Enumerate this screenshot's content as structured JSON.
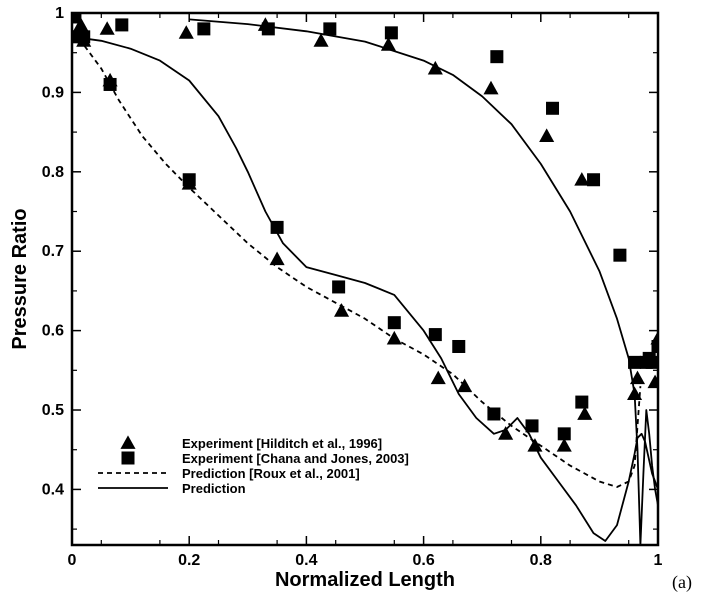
{
  "panel_label": "(a)",
  "chart_data": {
    "type": "scatter",
    "title": "",
    "xlabel": "Normalized Length",
    "ylabel": "Pressure Ratio",
    "xlim": [
      0,
      1
    ],
    "ylim": [
      0.33,
      1.0
    ],
    "xticks": [
      0,
      0.2,
      0.4,
      0.6,
      0.8,
      1
    ],
    "xtick_labels": [
      "0",
      "0.2",
      "0.4",
      "0.6",
      "0.8",
      "1"
    ],
    "yticks": [
      0.4,
      0.5,
      0.6,
      0.7,
      0.8,
      0.9,
      1.0
    ],
    "ytick_labels": [
      "0.4",
      "0.5",
      "0.6",
      "0.7",
      "0.8",
      "0.9",
      "1"
    ],
    "grid": false,
    "legend_position": "bottom-left",
    "series": [
      {
        "name": "Experiment [Hilditch et al., 1996]",
        "kind": "marker",
        "marker": "triangle",
        "x": [
          0.003,
          0.015,
          0.02,
          0.06,
          0.065,
          0.195,
          0.2,
          0.33,
          0.35,
          0.425,
          0.46,
          0.54,
          0.55,
          0.62,
          0.625,
          0.67,
          0.715,
          0.74,
          0.79,
          0.81,
          0.84,
          0.87,
          0.875,
          0.96,
          0.965,
          0.995,
          1.0
        ],
        "y": [
          0.995,
          0.985,
          0.965,
          0.98,
          0.915,
          0.975,
          0.785,
          0.985,
          0.69,
          0.965,
          0.625,
          0.96,
          0.59,
          0.93,
          0.54,
          0.53,
          0.905,
          0.47,
          0.455,
          0.845,
          0.455,
          0.79,
          0.495,
          0.52,
          0.54,
          0.535,
          0.59
        ]
      },
      {
        "name": "Experiment [Chana and Jones, 2003]",
        "kind": "marker",
        "marker": "square",
        "x": [
          0.005,
          0.01,
          0.02,
          0.065,
          0.085,
          0.2,
          0.225,
          0.335,
          0.35,
          0.44,
          0.455,
          0.545,
          0.55,
          0.62,
          0.66,
          0.72,
          0.725,
          0.785,
          0.82,
          0.84,
          0.87,
          0.89,
          0.935,
          0.96,
          0.98,
          0.985,
          0.99,
          1.0
        ],
        "y": [
          0.995,
          0.97,
          0.97,
          0.91,
          0.985,
          0.79,
          0.98,
          0.98,
          0.73,
          0.98,
          0.655,
          0.975,
          0.61,
          0.595,
          0.58,
          0.495,
          0.945,
          0.48,
          0.88,
          0.47,
          0.51,
          0.79,
          0.695,
          0.56,
          0.56,
          0.565,
          0.56,
          0.58
        ]
      },
      {
        "name": "Prediction [Roux et al., 2001]",
        "kind": "line",
        "style": "dashed",
        "x": [
          0,
          0.02,
          0.05,
          0.08,
          0.12,
          0.16,
          0.2,
          0.25,
          0.3,
          0.35,
          0.4,
          0.45,
          0.5,
          0.55,
          0.6,
          0.65,
          0.7,
          0.75,
          0.8,
          0.85,
          0.9,
          0.93,
          0.95,
          0.96,
          0.965,
          0.97
        ],
        "y": [
          0.975,
          0.96,
          0.93,
          0.89,
          0.845,
          0.81,
          0.78,
          0.745,
          0.71,
          0.68,
          0.655,
          0.635,
          0.615,
          0.59,
          0.57,
          0.545,
          0.51,
          0.48,
          0.455,
          0.43,
          0.41,
          0.403,
          0.41,
          0.43,
          0.48,
          0.53
        ]
      },
      {
        "name": "Prediction",
        "kind": "line",
        "style": "solid",
        "x": [
          0,
          0.05,
          0.1,
          0.15,
          0.2,
          0.25,
          0.28,
          0.3,
          0.33,
          0.36,
          0.4,
          0.45,
          0.5,
          0.55,
          0.6,
          0.63,
          0.66,
          0.69,
          0.72,
          0.74,
          0.76,
          0.78,
          0.8,
          0.83,
          0.86,
          0.89,
          0.91,
          0.93,
          0.95,
          0.96,
          0.965,
          0.972,
          0.978,
          0.984,
          0.99,
          0.995,
          1.0
        ],
        "y": [
          0.97,
          0.965,
          0.955,
          0.94,
          0.915,
          0.87,
          0.83,
          0.8,
          0.75,
          0.71,
          0.68,
          0.67,
          0.66,
          0.645,
          0.6,
          0.565,
          0.52,
          0.49,
          0.47,
          0.475,
          0.49,
          0.47,
          0.44,
          0.41,
          0.38,
          0.345,
          0.335,
          0.355,
          0.41,
          0.445,
          0.465,
          0.47,
          0.46,
          0.44,
          0.42,
          0.41,
          0.4
        ]
      },
      {
        "name": "",
        "kind": "line",
        "style": "solid",
        "x": [
          0.2,
          0.3,
          0.4,
          0.5,
          0.6,
          0.65,
          0.7,
          0.75,
          0.8,
          0.85,
          0.9,
          0.93,
          0.95,
          0.96,
          0.965,
          0.97,
          0.975,
          0.98,
          0.985,
          0.99,
          0.995,
          1.0
        ],
        "y": [
          0.992,
          0.986,
          0.977,
          0.964,
          0.94,
          0.922,
          0.895,
          0.86,
          0.81,
          0.75,
          0.675,
          0.615,
          0.565,
          0.52,
          0.45,
          0.33,
          0.42,
          0.5,
          0.47,
          0.43,
          0.4,
          0.38
        ]
      }
    ]
  }
}
